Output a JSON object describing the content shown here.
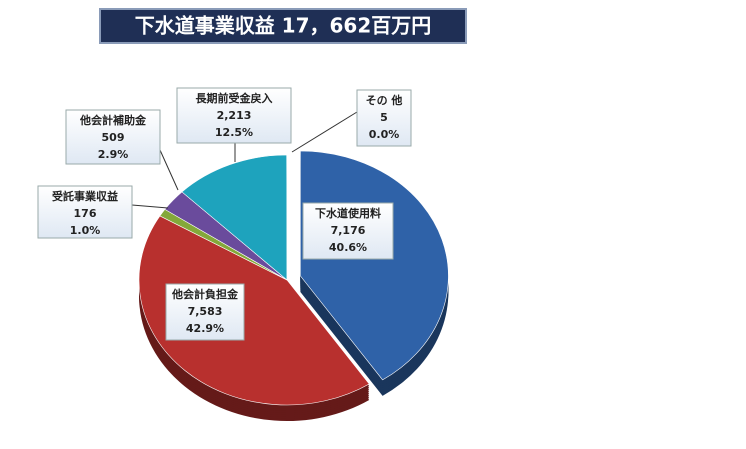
{
  "chart_data": {
    "type": "pie",
    "title": "下水道事業収益 17，662百万円",
    "categories": [
      "下水道使用料",
      "他会計負担金",
      "受託事業収益",
      "他会計補助金",
      "長期前受金戻入",
      "その 他"
    ],
    "values": [
      7176,
      7583,
      176,
      509,
      2213,
      5
    ],
    "value_labels": [
      "7,176",
      "7,583",
      "176",
      "509",
      "2,213",
      "5"
    ],
    "percents": [
      40.6,
      42.9,
      1.0,
      2.9,
      12.5,
      0.0
    ],
    "percent_labels": [
      "40.6%",
      "42.9%",
      "1.0%",
      "2.9%",
      "12.5%",
      "0.0%"
    ],
    "colors": [
      "#2f62a8",
      "#b8302e",
      "#84a83a",
      "#6a4b9c",
      "#1ea3bd",
      "#e08a2a"
    ]
  }
}
